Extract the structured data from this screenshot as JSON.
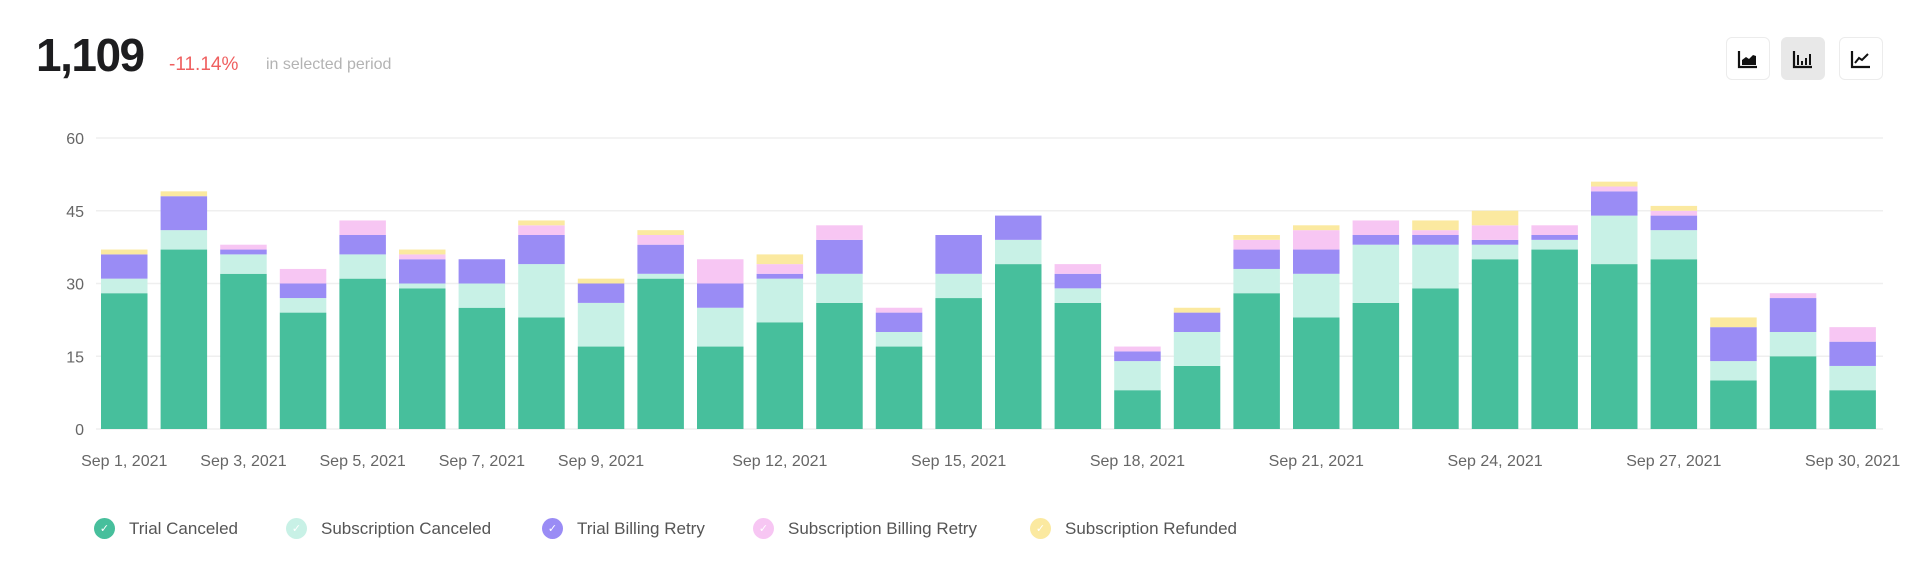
{
  "header": {
    "total": "1,109",
    "change": "-11.14%",
    "period_label": "in selected period"
  },
  "toolbar": {
    "buttons": [
      {
        "icon": "area-chart-icon",
        "active": false
      },
      {
        "icon": "bar-chart-icon",
        "active": true
      },
      {
        "icon": "line-chart-icon",
        "active": false
      }
    ]
  },
  "chart_data": {
    "type": "bar",
    "stacked": true,
    "ylim": [
      0,
      60
    ],
    "yticks": [
      "0",
      "15",
      "30",
      "45",
      "60"
    ],
    "grid": true,
    "legend_placement": "bottom",
    "categories": [
      "Sep 1, 2021",
      "Sep 2, 2021",
      "Sep 3, 2021",
      "Sep 4, 2021",
      "Sep 5, 2021",
      "Sep 6, 2021",
      "Sep 7, 2021",
      "Sep 8, 2021",
      "Sep 9, 2021",
      "Sep 10, 2021",
      "Sep 11, 2021",
      "Sep 12, 2021",
      "Sep 13, 2021",
      "Sep 14, 2021",
      "Sep 15, 2021",
      "Sep 16, 2021",
      "Sep 17, 2021",
      "Sep 18, 2021",
      "Sep 19, 2021",
      "Sep 20, 2021",
      "Sep 21, 2021",
      "Sep 22, 2021",
      "Sep 23, 2021",
      "Sep 24, 2021",
      "Sep 25, 2021",
      "Sep 26, 2021",
      "Sep 27, 2021",
      "Sep 28, 2021",
      "Sep 29, 2021",
      "Sep 30, 2021"
    ],
    "xtick_labels": [
      "Sep 1, 2021",
      "",
      "Sep 3, 2021",
      "",
      "Sep 5, 2021",
      "",
      "Sep 7, 2021",
      "",
      "Sep 9, 2021",
      "",
      "",
      "Sep 12, 2021",
      "",
      "",
      "Sep 15, 2021",
      "",
      "",
      "Sep 18, 2021",
      "",
      "",
      "Sep 21, 2021",
      "",
      "",
      "Sep 24, 2021",
      "",
      "",
      "Sep 27, 2021",
      "",
      "",
      "Sep 30, 2021"
    ],
    "series": [
      {
        "name": "Trial Canceled",
        "color": "#47bf9c",
        "values": [
          28,
          37,
          32,
          24,
          31,
          29,
          25,
          23,
          17,
          31,
          17,
          22,
          26,
          17,
          27,
          34,
          26,
          8,
          13,
          28,
          23,
          26,
          29,
          35,
          37,
          34,
          35,
          10,
          15,
          8
        ]
      },
      {
        "name": "Subscription Canceled",
        "color": "#c8f1e6",
        "values": [
          3,
          4,
          4,
          3,
          5,
          1,
          5,
          11,
          9,
          1,
          8,
          9,
          6,
          3,
          5,
          5,
          3,
          6,
          7,
          5,
          9,
          12,
          9,
          3,
          2,
          10,
          6,
          4,
          5,
          5
        ]
      },
      {
        "name": "Trial Billing Retry",
        "color": "#9a8cf5",
        "values": [
          5,
          7,
          1,
          3,
          4,
          5,
          5,
          6,
          4,
          6,
          5,
          1,
          7,
          4,
          8,
          5,
          3,
          2,
          4,
          4,
          5,
          2,
          2,
          1,
          1,
          5,
          3,
          7,
          7,
          5
        ]
      },
      {
        "name": "Subscription Billing Retry",
        "color": "#f7c6f3",
        "values": [
          0,
          0,
          1,
          3,
          3,
          1,
          0,
          2,
          0,
          2,
          5,
          2,
          3,
          1,
          0,
          0,
          2,
          1,
          0,
          2,
          4,
          3,
          1,
          3,
          2,
          1,
          1,
          0,
          1,
          3
        ]
      },
      {
        "name": "Subscription Refunded",
        "color": "#fbe9a0",
        "values": [
          1,
          1,
          0,
          0,
          0,
          1,
          0,
          1,
          1,
          1,
          0,
          2,
          0,
          0,
          0,
          0,
          0,
          0,
          1,
          1,
          1,
          0,
          2,
          3,
          0,
          1,
          1,
          2,
          0,
          0
        ]
      }
    ]
  }
}
